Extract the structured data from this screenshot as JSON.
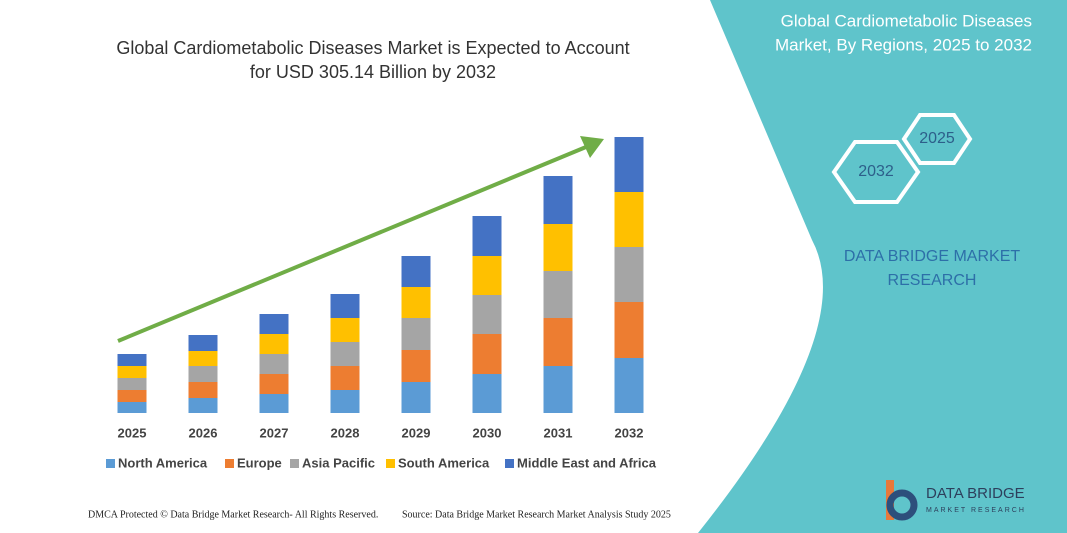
{
  "chart_data": {
    "type": "stacked-bar",
    "title": [
      "Global Cardiometabolic Diseases Market is Expected to Account",
      "for USD 305.14 Billion by 2032"
    ],
    "categories": [
      "2025",
      "2026",
      "2027",
      "2028",
      "2029",
      "2030",
      "2031",
      "2032"
    ],
    "series": [
      {
        "name": "North America",
        "color": "#5b9bd5",
        "values": [
          11,
          15,
          19,
          23,
          31,
          39,
          47,
          55
        ]
      },
      {
        "name": "Europe",
        "color": "#ed7d31",
        "values": [
          12,
          16,
          20,
          24,
          32,
          40,
          48,
          56
        ]
      },
      {
        "name": "Asia Pacific",
        "color": "#a5a5a5",
        "values": [
          12,
          16,
          20,
          24,
          32,
          39,
          47,
          55
        ]
      },
      {
        "name": "South America",
        "color": "#ffc000",
        "values": [
          12,
          15,
          20,
          24,
          31,
          39,
          47,
          55
        ]
      },
      {
        "name": "Middle East and Africa",
        "color": "#4472c4",
        "values": [
          12,
          16,
          20,
          24,
          31,
          40,
          48,
          55
        ]
      }
    ],
    "arrow_color": "#70ad47"
  },
  "panel": {
    "title": [
      "Global Cardiometabolic Diseases",
      "Market, By Regions, 2025 to 2032"
    ],
    "hex_start": "2025",
    "hex_end": "2032",
    "brand": [
      "DATA BRIDGE MARKET",
      "RESEARCH"
    ],
    "logo": [
      "DATA BRIDGE",
      "MARKET RESEARCH"
    ]
  },
  "footer": {
    "left": "DMCA Protected © Data Bridge Market Research- All Rights Reserved.",
    "right": "Source: Data Bridge Market Research Market Analysis Study 2025"
  }
}
